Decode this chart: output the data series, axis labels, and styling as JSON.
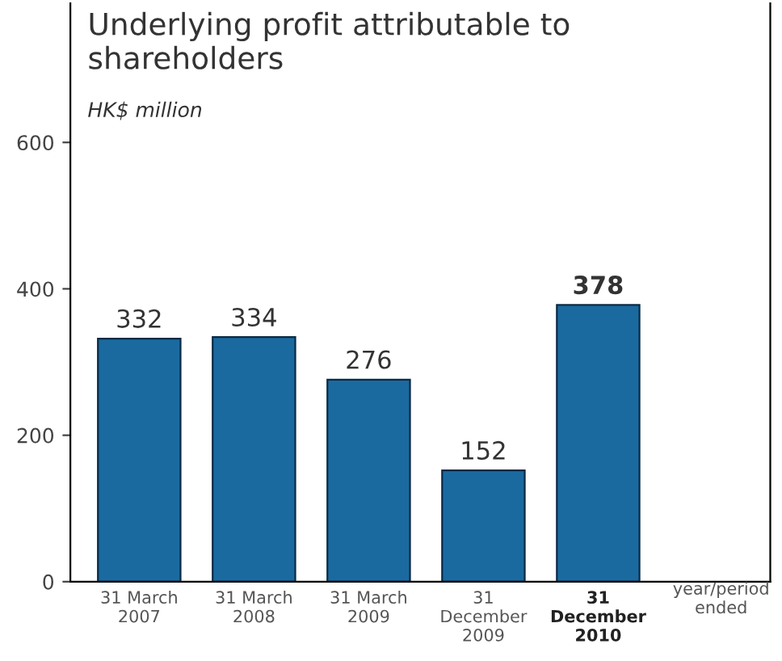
{
  "chart_data": {
    "type": "bar",
    "title": "Underlying profit attributable to\nshareholders",
    "subtitle": "HK$ million",
    "xlabel": "year/period\nended",
    "categories": [
      "31 March\n2007",
      "31 March\n2008",
      "31 March\n2009",
      "31\nDecember\n2009",
      "31\nDecember\n2010"
    ],
    "values": [
      332,
      334,
      276,
      152,
      378
    ],
    "color": "#1a6aa0",
    "ylim": [
      0,
      790
    ],
    "yticks": [
      0,
      200,
      400,
      600
    ],
    "data_labels": true,
    "grid": false,
    "legend": false
  }
}
